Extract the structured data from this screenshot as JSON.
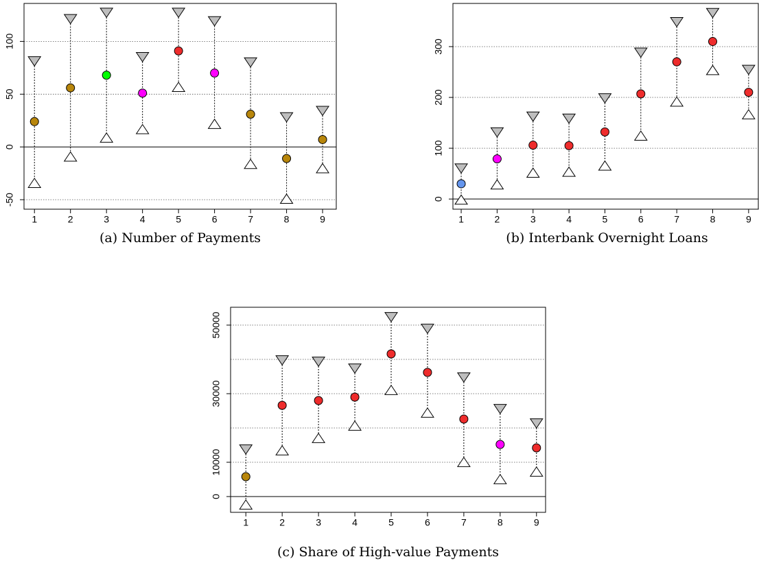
{
  "chart_data": [
    {
      "type": "interval",
      "title": "(a) Number of Payments",
      "x": [
        1,
        2,
        3,
        4,
        5,
        6,
        7,
        8,
        9
      ],
      "xlim": [
        0.71,
        9.38
      ],
      "xticks": [
        1,
        2,
        3,
        4,
        5,
        6,
        7,
        8,
        9
      ],
      "values": [
        24,
        56,
        68,
        51,
        91,
        70,
        31,
        -11,
        7
      ],
      "point_colors": [
        "#b8860b",
        "#b8860b",
        "#00ff00",
        "#ff00ff",
        "#ee2c2c",
        "#ff00ff",
        "#b8860b",
        "#b8860b",
        "#b8860b"
      ],
      "upper": [
        82,
        122,
        128,
        86,
        128,
        120,
        81,
        29,
        35
      ],
      "lower": [
        -35,
        -10,
        8,
        16,
        56,
        21,
        -17,
        -50,
        -21
      ],
      "upper_color": "#bebebe",
      "lower_color": "#ffffff",
      "ylim": [
        -59,
        136
      ],
      "yticks": [
        -50,
        0,
        50,
        100
      ],
      "ygrid": [
        -50,
        50,
        100
      ],
      "zero_line": true
    },
    {
      "type": "interval",
      "title": "(b) Interbank Overnight Loans",
      "x": [
        1,
        2,
        3,
        4,
        5,
        6,
        7,
        8,
        9
      ],
      "xlim": [
        0.77,
        9.27
      ],
      "xticks": [
        1,
        2,
        3,
        4,
        5,
        6,
        7,
        8,
        9
      ],
      "values": [
        30,
        79,
        106,
        105,
        132,
        207,
        270,
        310,
        210
      ],
      "point_colors": [
        "#6495ed",
        "#ff00ff",
        "#ee2c2c",
        "#ee2c2c",
        "#ee2c2c",
        "#ee2c2c",
        "#ee2c2c",
        "#ee2c2c",
        "#ee2c2c"
      ],
      "upper": [
        62,
        133,
        164,
        160,
        200,
        290,
        350,
        368,
        256
      ],
      "lower": [
        -3,
        27,
        50,
        52,
        64,
        123,
        190,
        252,
        165
      ],
      "upper_color": "#bebebe",
      "lower_color": "#ffffff",
      "ylim": [
        -20,
        385
      ],
      "yticks": [
        0,
        100,
        200,
        300
      ],
      "ygrid": [
        100,
        200,
        300
      ],
      "zero_line": true
    },
    {
      "type": "interval",
      "title": "(c) Share of High-value Payments",
      "x": [
        1,
        2,
        3,
        4,
        5,
        6,
        7,
        8,
        9
      ],
      "xlim": [
        0.58,
        9.25
      ],
      "xticks": [
        1,
        2,
        3,
        4,
        5,
        6,
        7,
        8,
        9
      ],
      "values": [
        5800,
        26600,
        28000,
        29000,
        41600,
        36200,
        22600,
        15200,
        14200
      ],
      "point_colors": [
        "#b8860b",
        "#ee2c2c",
        "#ee2c2c",
        "#ee2c2c",
        "#ee2c2c",
        "#ee2c2c",
        "#ee2c2c",
        "#ff00ff",
        "#ee2c2c"
      ],
      "upper": [
        14000,
        40000,
        39600,
        37600,
        52600,
        49200,
        35000,
        25800,
        21600
      ],
      "lower": [
        -2600,
        13200,
        16800,
        20400,
        30800,
        24200,
        9800,
        4800,
        7000
      ],
      "upper_color": "#bebebe",
      "lower_color": "#ffffff",
      "ylim": [
        -4600,
        55200
      ],
      "yticks": [
        0,
        10000,
        30000,
        50000
      ],
      "ygrid": [
        10000,
        20000,
        30000,
        40000,
        50000
      ],
      "zero_line": true
    }
  ]
}
